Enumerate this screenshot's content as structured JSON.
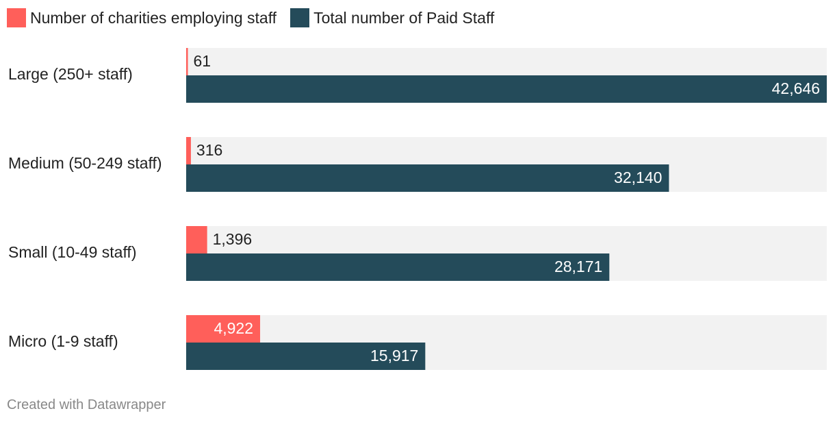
{
  "legend": {
    "items": [
      {
        "label": "Number of charities employing staff",
        "color": "#ff5f5a"
      },
      {
        "label": "Total number of Paid Staff",
        "color": "#244b5a"
      }
    ]
  },
  "footer": {
    "credit": "Created with Datawrapper"
  },
  "chart_data": {
    "type": "bar",
    "orientation": "horizontal",
    "categories": [
      "Large (250+ staff)",
      "Medium (50-249 staff)",
      "Small (10-49 staff)",
      "Micro (1-9 staff)"
    ],
    "series": [
      {
        "name": "Number of charities employing staff",
        "color": "#ff5f5a",
        "values": [
          61,
          316,
          1396,
          4922
        ],
        "labels": [
          "61",
          "316",
          "1,396",
          "4,922"
        ]
      },
      {
        "name": "Total number of Paid Staff",
        "color": "#244b5a",
        "values": [
          42646,
          32140,
          28171,
          15917
        ],
        "labels": [
          "42,646",
          "32,140",
          "28,171",
          "15,917"
        ]
      }
    ],
    "xlim": [
      0,
      42646
    ],
    "background_bar_color": "#f2f2f2",
    "grid": false,
    "legend_position": "top-left"
  }
}
